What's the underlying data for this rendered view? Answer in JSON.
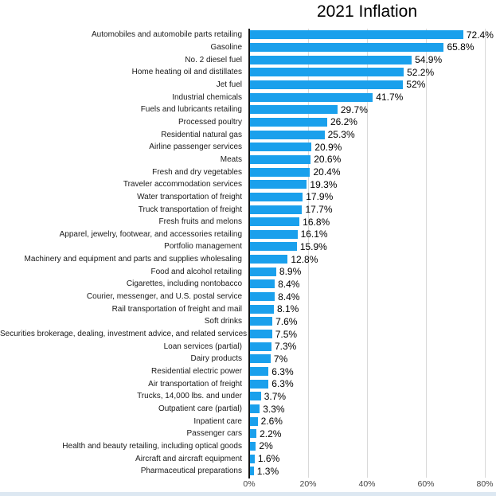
{
  "chart_data": {
    "type": "bar",
    "orientation": "horizontal",
    "title": "2021 Inflation",
    "xlabel": "",
    "ylabel": "",
    "xlim": [
      0,
      80
    ],
    "grid": "vertical-light-gray",
    "legend": "none",
    "bar_color": "#1aa0ec",
    "axis_line_color": "#141414",
    "categories": [
      "Automobiles and automobile parts retailing",
      "Gasoline",
      "No. 2 diesel fuel",
      "Home heating oil and distillates",
      "Jet fuel",
      "Industrial chemicals",
      "Fuels and lubricants retailing",
      "Processed poultry",
      "Residential natural gas",
      "Airline passenger services",
      "Meats",
      "Fresh and dry vegetables",
      "Traveler accommodation services",
      "Water transportation of freight",
      "Truck transportation of freight",
      "Fresh fruits and melons",
      "Apparel, jewelry, footwear, and accessories retailing",
      "Portfolio management",
      "Machinery and equipment and parts and supplies wholesaling",
      "Food and alcohol retailing",
      "Cigarettes, including nontobacco",
      "Courier, messenger, and U.S. postal service",
      "Rail transportation of freight and mail",
      "Soft drinks",
      "Securities brokerage, dealing, investment advice, and related services",
      "Loan services (partial)",
      "Dairy products",
      "Residential electric power",
      "Air transportation of freight",
      "Trucks, 14,000 lbs. and under",
      "Outpatient care (partial)",
      "Inpatient care",
      "Passenger cars",
      "Health and beauty retailing, including optical goods",
      "Aircraft and aircraft equipment",
      "Pharmaceutical preparations"
    ],
    "values": [
      72.4,
      65.8,
      54.9,
      52.2,
      52,
      41.7,
      29.7,
      26.2,
      25.3,
      20.9,
      20.6,
      20.4,
      19.3,
      17.9,
      17.7,
      16.8,
      16.1,
      15.9,
      12.8,
      8.9,
      8.4,
      8.4,
      8.1,
      7.6,
      7.5,
      7.3,
      7,
      6.3,
      6.3,
      3.7,
      3.3,
      2.6,
      2.2,
      2,
      1.6,
      1.3
    ],
    "value_labels": [
      "72.4%",
      "65.8%",
      "54.9%",
      "52.2%",
      "52%",
      "41.7%",
      "29.7%",
      "26.2%",
      "25.3%",
      "20.9%",
      "20.6%",
      "20.4%",
      "19.3%",
      "17.9%",
      "17.7%",
      "16.8%",
      "16.1%",
      "15.9%",
      "12.8%",
      "8.9%",
      "8.4%",
      "8.4%",
      "8.1%",
      "7.6%",
      "7.5%",
      "7.3%",
      "7%",
      "6.3%",
      "6.3%",
      "3.7%",
      "3.3%",
      "2.6%",
      "2.2%",
      "2%",
      "1.6%",
      "1.3%"
    ],
    "x_ticks": [
      "0%",
      "20%",
      "40%",
      "60%",
      "80%"
    ],
    "x_tick_values": [
      0,
      20,
      40,
      60,
      80
    ]
  }
}
